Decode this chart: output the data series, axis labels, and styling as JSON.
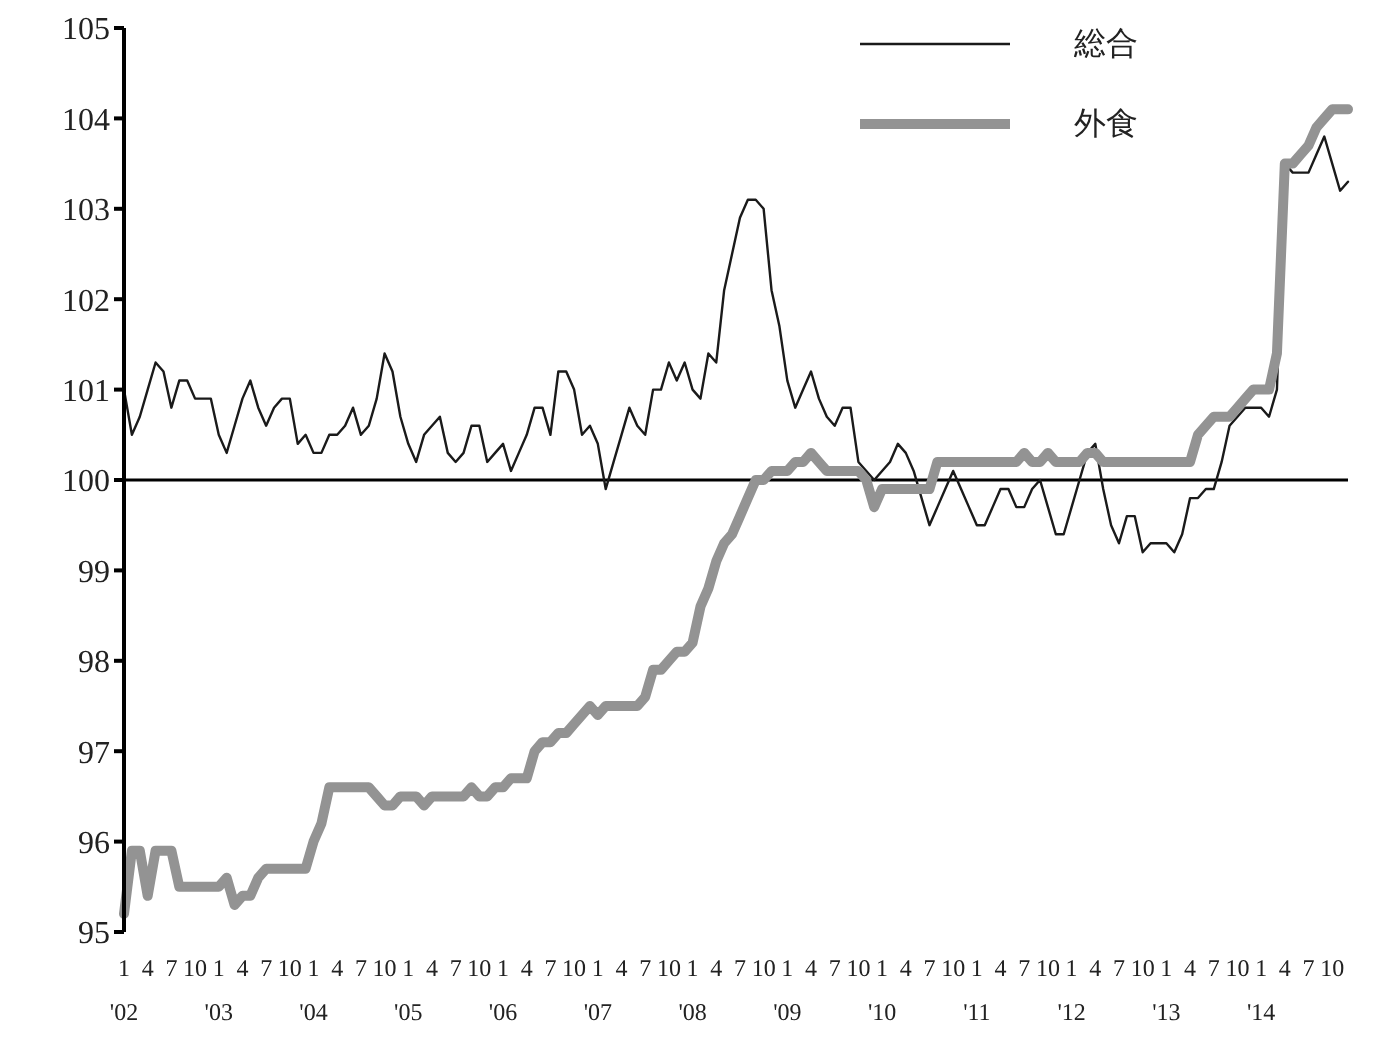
{
  "chart_data": {
    "type": "line",
    "categories": [
      "1\n'02",
      null,
      null,
      "4",
      null,
      null,
      "7",
      null,
      null,
      "10",
      null,
      null,
      "1\n'03",
      null,
      null,
      "4",
      null,
      null,
      "7",
      null,
      null,
      "10",
      null,
      null,
      "1\n'04",
      null,
      null,
      "4",
      null,
      null,
      "7",
      null,
      null,
      "10",
      null,
      null,
      "1\n'05",
      null,
      null,
      "4",
      null,
      null,
      "7",
      null,
      null,
      "10",
      null,
      null,
      "1\n'06",
      null,
      null,
      "4",
      null,
      null,
      "7",
      null,
      null,
      "10",
      null,
      null,
      "1\n'07",
      null,
      null,
      "4",
      null,
      null,
      "7",
      null,
      null,
      "10",
      null,
      null,
      "1\n'08",
      null,
      null,
      "4",
      null,
      null,
      "7",
      null,
      null,
      "10",
      null,
      null,
      "1\n'09",
      null,
      null,
      "4",
      null,
      null,
      "7",
      null,
      null,
      "10",
      null,
      null,
      "1\n'10",
      null,
      null,
      "4",
      null,
      null,
      "7",
      null,
      null,
      "10",
      null,
      null,
      "1\n'11",
      null,
      null,
      "4",
      null,
      null,
      "7",
      null,
      null,
      "10",
      null,
      null,
      "1\n'12",
      null,
      null,
      "4",
      null,
      null,
      "7",
      null,
      null,
      "10",
      null,
      null,
      "1\n'13",
      null,
      null,
      "4",
      null,
      null,
      "7",
      null,
      null,
      "10",
      null,
      null,
      "1\n'14",
      null,
      null,
      "4",
      null,
      null,
      "7",
      null,
      null,
      "10",
      null,
      null
    ],
    "series": [
      {
        "name": "総合",
        "color": "#1a1a1a",
        "values": [
          101.0,
          100.5,
          100.7,
          101.0,
          101.3,
          101.2,
          100.8,
          101.1,
          101.1,
          100.9,
          100.9,
          100.9,
          100.5,
          100.3,
          100.6,
          100.9,
          101.1,
          100.8,
          100.6,
          100.8,
          100.9,
          100.9,
          100.4,
          100.5,
          100.3,
          100.3,
          100.5,
          100.5,
          100.6,
          100.8,
          100.5,
          100.6,
          100.9,
          101.4,
          101.2,
          100.7,
          100.4,
          100.2,
          100.5,
          100.6,
          100.7,
          100.3,
          100.2,
          100.3,
          100.6,
          100.6,
          100.2,
          100.3,
          100.4,
          100.1,
          100.3,
          100.5,
          100.8,
          100.8,
          100.5,
          101.2,
          101.2,
          101.0,
          100.5,
          100.6,
          100.4,
          99.9,
          100.2,
          100.5,
          100.8,
          100.6,
          100.5,
          101.0,
          101.0,
          101.3,
          101.1,
          101.3,
          101.0,
          100.9,
          101.4,
          101.3,
          102.1,
          102.5,
          102.9,
          103.1,
          103.1,
          103.0,
          102.1,
          101.7,
          101.1,
          100.8,
          101.0,
          101.2,
          100.9,
          100.7,
          100.6,
          100.8,
          100.8,
          100.2,
          100.1,
          100.0,
          100.1,
          100.2,
          100.4,
          100.3,
          100.1,
          99.8,
          99.5,
          99.7,
          99.9,
          100.1,
          99.9,
          99.7,
          99.5,
          99.5,
          99.7,
          99.9,
          99.9,
          99.7,
          99.7,
          99.9,
          100.0,
          99.7,
          99.4,
          99.4,
          99.7,
          100.0,
          100.3,
          100.4,
          99.9,
          99.5,
          99.3,
          99.6,
          99.6,
          99.2,
          99.3,
          99.3,
          99.3,
          99.2,
          99.4,
          99.8,
          99.8,
          99.9,
          99.9,
          100.2,
          100.6,
          100.7,
          100.8,
          100.8,
          100.8,
          100.7,
          101.0,
          103.5,
          103.4,
          103.4,
          103.4,
          103.6,
          103.8,
          103.5,
          103.2,
          103.3
        ]
      },
      {
        "name": "外食",
        "color": "#939393",
        "values": [
          95.2,
          95.9,
          95.9,
          95.4,
          95.9,
          95.9,
          95.9,
          95.5,
          95.5,
          95.5,
          95.5,
          95.5,
          95.5,
          95.6,
          95.3,
          95.4,
          95.4,
          95.6,
          95.7,
          95.7,
          95.7,
          95.7,
          95.7,
          95.7,
          96.0,
          96.2,
          96.6,
          96.6,
          96.6,
          96.6,
          96.6,
          96.6,
          96.5,
          96.4,
          96.4,
          96.5,
          96.5,
          96.5,
          96.4,
          96.5,
          96.5,
          96.5,
          96.5,
          96.5,
          96.6,
          96.5,
          96.5,
          96.6,
          96.6,
          96.7,
          96.7,
          96.7,
          97.0,
          97.1,
          97.1,
          97.2,
          97.2,
          97.3,
          97.4,
          97.5,
          97.4,
          97.5,
          97.5,
          97.5,
          97.5,
          97.5,
          97.6,
          97.9,
          97.9,
          98.0,
          98.1,
          98.1,
          98.2,
          98.6,
          98.8,
          99.1,
          99.3,
          99.4,
          99.6,
          99.8,
          100.0,
          100.0,
          100.1,
          100.1,
          100.1,
          100.2,
          100.2,
          100.3,
          100.2,
          100.1,
          100.1,
          100.1,
          100.1,
          100.1,
          100.0,
          99.7,
          99.9,
          99.9,
          99.9,
          99.9,
          99.9,
          99.9,
          99.9,
          100.2,
          100.2,
          100.2,
          100.2,
          100.2,
          100.2,
          100.2,
          100.2,
          100.2,
          100.2,
          100.2,
          100.3,
          100.2,
          100.2,
          100.3,
          100.2,
          100.2,
          100.2,
          100.2,
          100.3,
          100.3,
          100.2,
          100.2,
          100.2,
          100.2,
          100.2,
          100.2,
          100.2,
          100.2,
          100.2,
          100.2,
          100.2,
          100.2,
          100.5,
          100.6,
          100.7,
          100.7,
          100.7,
          100.8,
          100.9,
          101.0,
          101.0,
          101.0,
          101.4,
          103.5,
          103.5,
          103.6,
          103.7,
          103.9,
          104.0,
          104.1,
          104.1,
          104.1
        ]
      }
    ],
    "ylim": [
      95,
      105
    ],
    "yticks": [
      95,
      96,
      97,
      98,
      99,
      100,
      101,
      102,
      103,
      104,
      105
    ],
    "ref_lines": [
      {
        "axis": "y",
        "value": 100,
        "color": "#000000"
      }
    ],
    "grid": false,
    "legend": "top right",
    "marker": "none",
    "line_style": "solid"
  }
}
